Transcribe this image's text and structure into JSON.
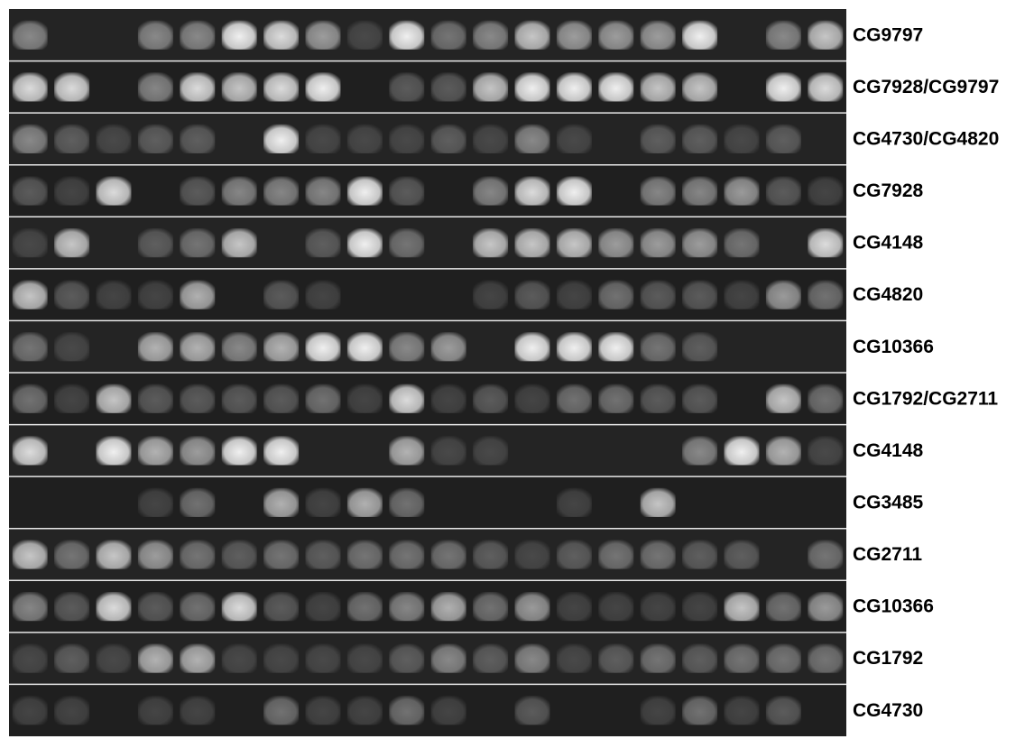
{
  "rows": [
    {
      "label": "CG9797"
    },
    {
      "label": "CG7928/CG9797"
    },
    {
      "label": "CG4730/CG4820"
    },
    {
      "label": "CG7928"
    },
    {
      "label": "CG4148"
    },
    {
      "label": "CG4820"
    },
    {
      "label": "CG10366"
    },
    {
      "label": "CG1792/CG2711"
    },
    {
      "label": "CG4148"
    },
    {
      "label": "CG3485"
    },
    {
      "label": "CG2711"
    },
    {
      "label": "CG10366"
    },
    {
      "label": "CG1792"
    },
    {
      "label": "CG4730"
    }
  ]
}
